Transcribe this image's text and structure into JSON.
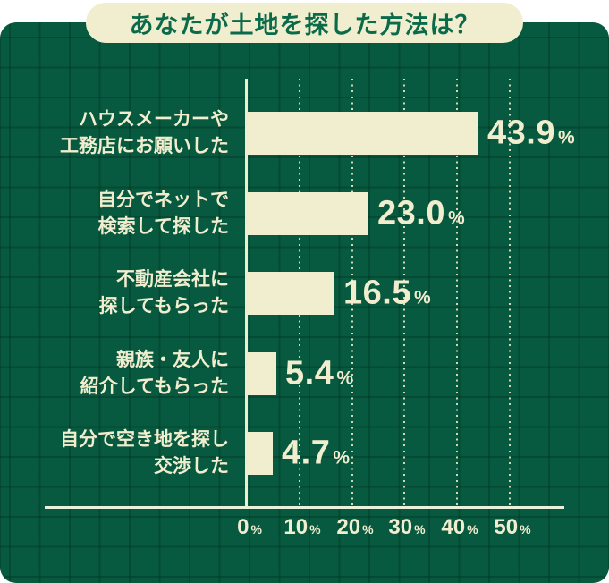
{
  "title": "あなたが土地を探した方法は？",
  "colors": {
    "panel_green": "#07593f",
    "grid_line_green": "#004c35",
    "cream": "#f1eecf",
    "title_text_green": "#0a6b4a"
  },
  "chart_data": {
    "type": "bar",
    "orientation": "horizontal",
    "title": "あなたが土地を探した方法は？",
    "xlabel": "",
    "ylabel": "",
    "unit": "%",
    "xlim": [
      0,
      50
    ],
    "xticks": [
      0,
      10,
      20,
      30,
      40,
      50
    ],
    "grid": "dotted vertical gridlines at each 10%",
    "legend": "none",
    "categories": [
      "ハウスメーカーや工務店にお願いした",
      "自分でネットで検索して探した",
      "不動産会社に探してもらった",
      "親族・友人に紹介してもらった",
      "自分で空き地を探し交渉した"
    ],
    "values": [
      43.9,
      23.0,
      16.5,
      5.4,
      4.7
    ],
    "rows": [
      {
        "label_lines": [
          "ハウスメーカーや",
          "工務店にお願いした"
        ],
        "value": 43.9,
        "value_label": "43.9"
      },
      {
        "label_lines": [
          "自分でネットで",
          "検索して探した"
        ],
        "value": 23.0,
        "value_label": "23.0"
      },
      {
        "label_lines": [
          "不動産会社に",
          "探してもらった"
        ],
        "value": 16.5,
        "value_label": "16.5"
      },
      {
        "label_lines": [
          "親族・友人に",
          "紹介してもらった"
        ],
        "value": 5.4,
        "value_label": "5.4"
      },
      {
        "label_lines": [
          "自分で空き地を探し",
          "交渉した"
        ],
        "value": 4.7,
        "value_label": "4.7"
      }
    ]
  }
}
